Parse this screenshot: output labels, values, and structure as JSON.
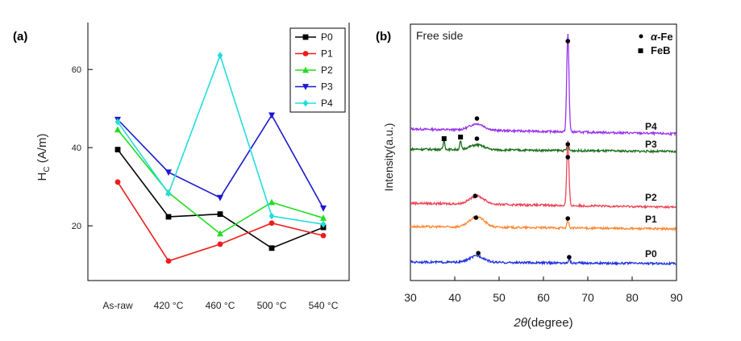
{
  "chart_data": [
    {
      "panel_label": "(a)",
      "type": "line",
      "xlabel": "",
      "ylabel_main": "H",
      "ylabel_sub": "C",
      "ylabel_rest": " (A/m)",
      "categories": [
        "As-raw",
        "420 °C",
        "460 °C",
        "500 °C",
        "540 °C"
      ],
      "y_ticks": [
        "20",
        "40",
        "60"
      ],
      "ylim": [
        6,
        72
      ],
      "series": [
        {
          "name": "P0",
          "color": "#000000",
          "marker": "square",
          "values": [
            39.5,
            22.3,
            23.0,
            14.3,
            19.6
          ]
        },
        {
          "name": "P1",
          "color": "#ee1c1c",
          "marker": "circle",
          "values": [
            31.2,
            11.0,
            15.3,
            20.7,
            17.5
          ]
        },
        {
          "name": "P2",
          "color": "#22dd22",
          "marker": "triangle",
          "values": [
            44.6,
            28.5,
            18.0,
            26.0,
            22.0
          ]
        },
        {
          "name": "P3",
          "color": "#1a1ad0",
          "marker": "triangle-down",
          "values": [
            47.2,
            33.7,
            27.2,
            48.3,
            24.5
          ]
        },
        {
          "name": "P4",
          "color": "#22dddd",
          "marker": "diamond",
          "values": [
            46.6,
            28.3,
            63.6,
            22.5,
            20.4
          ]
        }
      ]
    },
    {
      "panel_label": "(b)",
      "type": "line",
      "annotation": "Free side",
      "xlabel_var": "2θ",
      "xlabel_unit": "(degree)",
      "ylabel": "Intensity(a.u.)",
      "x_ticks": [
        "30",
        "40",
        "50",
        "60",
        "70",
        "80",
        "90"
      ],
      "xlim": [
        30,
        90
      ],
      "legend": [
        {
          "symbol": "•",
          "label_var": "α",
          "label_rest": "-Fe"
        },
        {
          "symbol": "■",
          "label": "FeB"
        }
      ],
      "series": [
        {
          "name": "P4",
          "color": "#9933ee",
          "peaks": [
            45,
            65.5
          ]
        },
        {
          "name": "P3",
          "color": "#1a6e1a",
          "peaks": [
            37.6,
            41.3,
            45,
            65.5
          ]
        },
        {
          "name": "P2",
          "color": "#ee4455",
          "peaks": [
            44.6,
            65.5
          ]
        },
        {
          "name": "P1",
          "color": "#ff8833",
          "peaks": [
            44.8,
            65.5
          ]
        },
        {
          "name": "P0",
          "color": "#2233dd",
          "peaks": [
            45.3,
            65.8
          ]
        }
      ]
    }
  ]
}
